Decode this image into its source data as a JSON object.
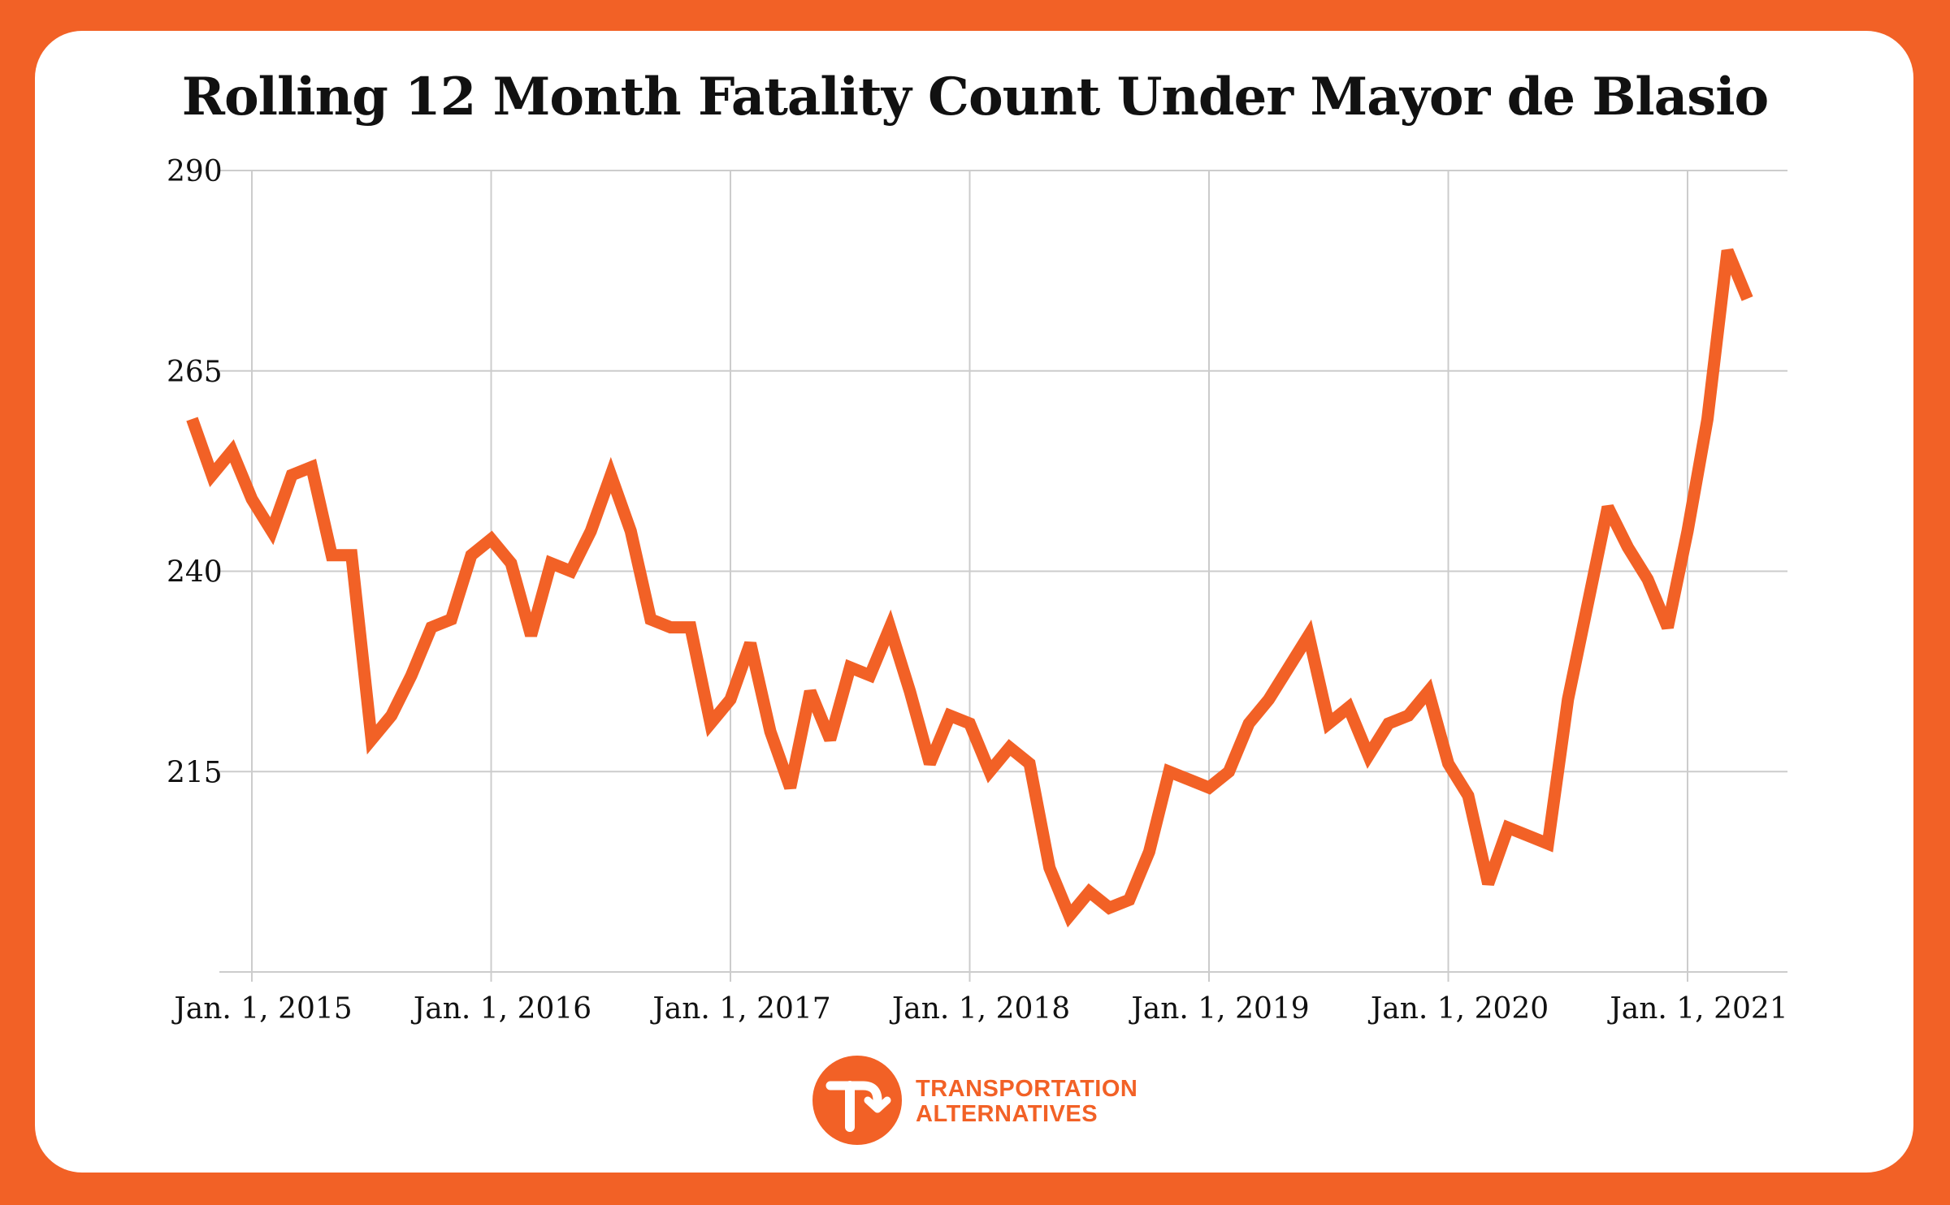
{
  "colors": {
    "background": "#f26126",
    "card": "#ffffff",
    "line": "#f26126",
    "grid": "#cccccc",
    "text": "#111111"
  },
  "chart_data": {
    "type": "line",
    "title": "Rolling 12 Month Fatality Count Under Mayor de Blasio",
    "xlabel": "",
    "ylabel": "",
    "ylim": [
      190,
      290
    ],
    "yticks": [
      290,
      265,
      240,
      215
    ],
    "ytick_labels": [
      "290",
      "265",
      "240",
      "215"
    ],
    "xtick_labels": [
      "Jan. 1, 2015",
      "Jan. 1, 2016",
      "Jan. 1, 2017",
      "Jan. 1, 2018",
      "Jan. 1, 2019",
      "Jan. 1, 2020",
      "Jan. 1, 2021"
    ],
    "xtick_positions_months": [
      0,
      12,
      24,
      36,
      48,
      60,
      72
    ],
    "x_start": "Oct. 2014",
    "grid": true,
    "series": [
      {
        "values": [
          259,
          252,
          255,
          249,
          245,
          252,
          253,
          242,
          242,
          219,
          222,
          227,
          233,
          234,
          242,
          244,
          241,
          232,
          241,
          240,
          245,
          252,
          245,
          234,
          233,
          233,
          221,
          224,
          231,
          220,
          213,
          225,
          219,
          228,
          227,
          233,
          225,
          216,
          222,
          221,
          215,
          218,
          216,
          203,
          197,
          200,
          198,
          199,
          205,
          215,
          214,
          213,
          215,
          221,
          224,
          228,
          232,
          221,
          223,
          217,
          221,
          222,
          225,
          216,
          212,
          201,
          208,
          207,
          206,
          224,
          236,
          248,
          243,
          239,
          233,
          245,
          259,
          280,
          274
        ]
      }
    ]
  },
  "logo": {
    "name": "transportation-alternatives-logo",
    "line1": "TRANSPORTATION",
    "line2": "ALTERNATIVES"
  }
}
